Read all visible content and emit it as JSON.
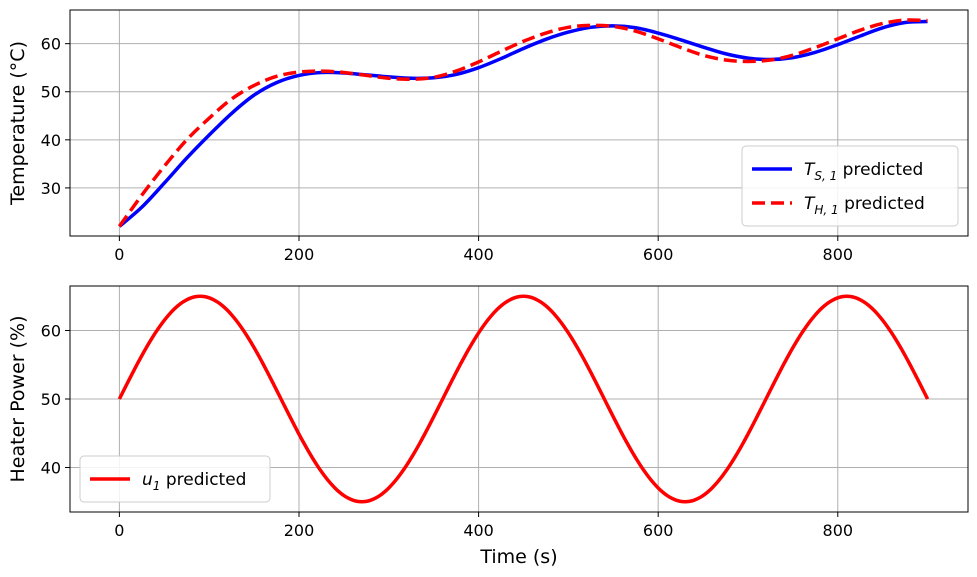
{
  "chart_data": [
    {
      "type": "line",
      "ylabel": "Temperature (°C)",
      "xlabel": "",
      "xlim": [
        -55,
        945
      ],
      "ylim": [
        20.0,
        67.0
      ],
      "xticks": [
        0,
        200,
        400,
        600,
        800
      ],
      "yticks": [
        30,
        40,
        50,
        60
      ],
      "grid": true,
      "legend_position": "bottom-right",
      "x": [
        0,
        25,
        50,
        75,
        100,
        125,
        150,
        175,
        200,
        225,
        250,
        275,
        300,
        325,
        350,
        375,
        400,
        425,
        450,
        475,
        500,
        525,
        550,
        575,
        600,
        625,
        650,
        675,
        700,
        725,
        750,
        775,
        800,
        825,
        850,
        875,
        900
      ],
      "series": [
        {
          "name": "T_S,1 predicted",
          "legend_main": "T",
          "legend_sub": "S, 1",
          "legend_suffix": " predicted",
          "color": "#0000ff",
          "style": "solid",
          "values": [
            22.0,
            26.0,
            31.0,
            36.2,
            41.0,
            45.5,
            49.3,
            51.9,
            53.4,
            54.0,
            53.9,
            53.5,
            53.1,
            52.8,
            52.9,
            53.6,
            55.0,
            56.9,
            59.0,
            60.9,
            62.4,
            63.4,
            63.7,
            63.3,
            62.2,
            60.8,
            59.3,
            57.9,
            57.0,
            56.7,
            57.1,
            58.2,
            59.8,
            61.6,
            63.3,
            64.4,
            64.6
          ]
        },
        {
          "name": "T_H,1 predicted",
          "legend_main": "T",
          "legend_sub": "H, 1",
          "legend_suffix": " predicted",
          "color": "#ff0000",
          "style": "dashed",
          "values": [
            22.0,
            28.5,
            34.5,
            40.0,
            44.5,
            48.5,
            51.3,
            53.2,
            54.1,
            54.3,
            54.0,
            53.4,
            52.8,
            52.6,
            53.0,
            54.3,
            56.2,
            58.4,
            60.5,
            62.2,
            63.4,
            63.8,
            63.6,
            62.6,
            61.0,
            59.2,
            57.6,
            56.6,
            56.3,
            56.6,
            57.6,
            59.2,
            61.0,
            62.8,
            64.2,
            64.9,
            64.8
          ]
        }
      ]
    },
    {
      "type": "line",
      "ylabel": "Heater Power (%)",
      "xlabel": "Time (s)",
      "xlim": [
        -55,
        945
      ],
      "ylim": [
        33.5,
        66.5
      ],
      "xticks": [
        0,
        200,
        400,
        600,
        800
      ],
      "yticks": [
        40,
        50,
        60
      ],
      "grid": true,
      "legend_position": "bottom-left",
      "series": [
        {
          "name": "u_1 predicted",
          "legend_main": "u",
          "legend_sub": "1",
          "legend_suffix": " predicted",
          "color": "#ff0000",
          "style": "solid",
          "function": "50 + 15*sin(2*pi*t/360)",
          "t_range": [
            0,
            900
          ],
          "sample_step": 5
        }
      ]
    }
  ]
}
